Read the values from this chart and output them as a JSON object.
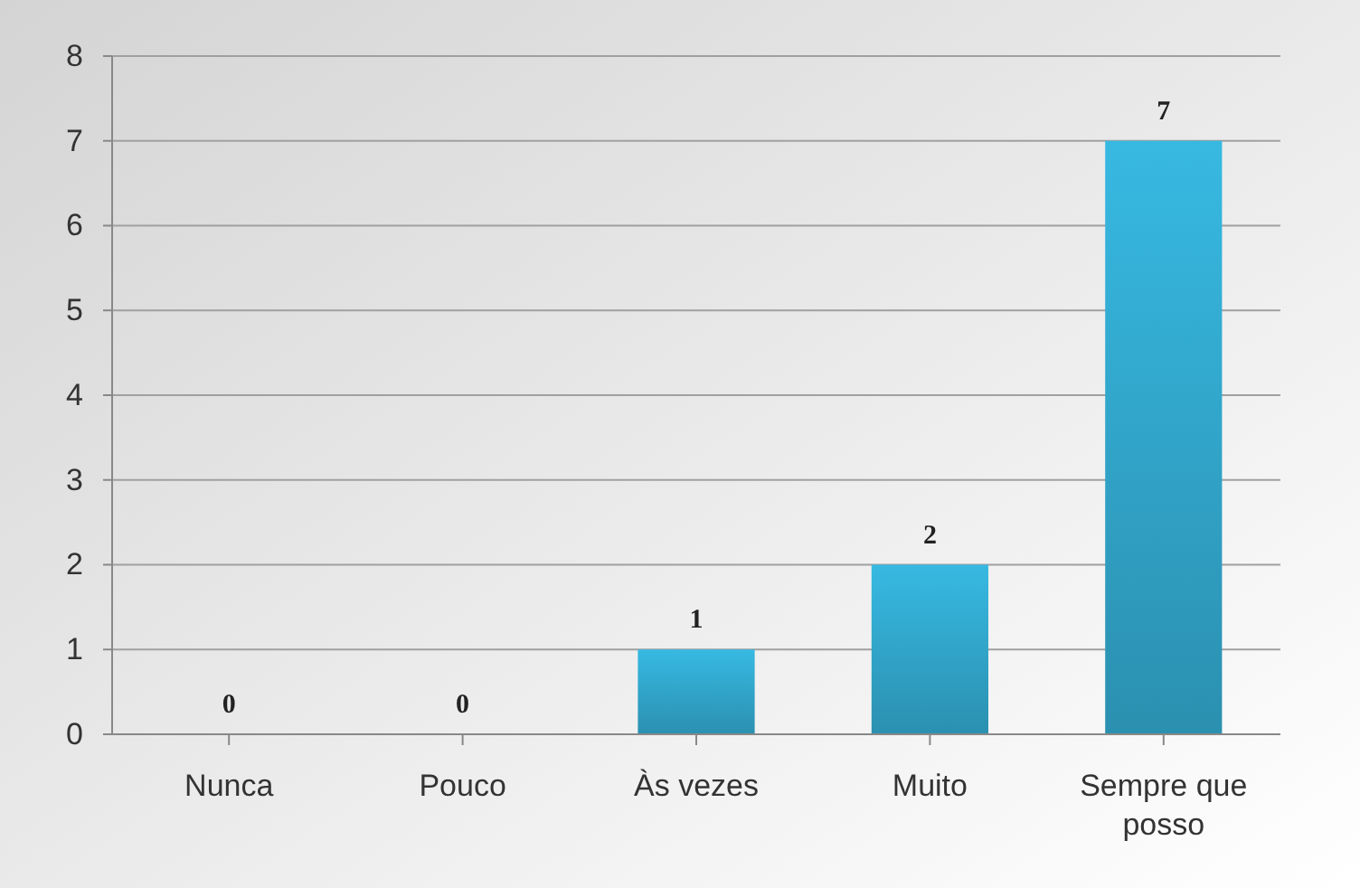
{
  "chart_data": {
    "type": "bar",
    "categories": [
      "Nunca",
      "Pouco",
      "Às vezes",
      "Muito",
      "Sempre que posso"
    ],
    "values": [
      0,
      0,
      1,
      2,
      7
    ],
    "color": "#33acd2",
    "ylim": [
      0,
      8
    ],
    "yticks": [
      0,
      1,
      2,
      3,
      4,
      5,
      6,
      7,
      8
    ],
    "grid": "y",
    "data_labels": true
  }
}
